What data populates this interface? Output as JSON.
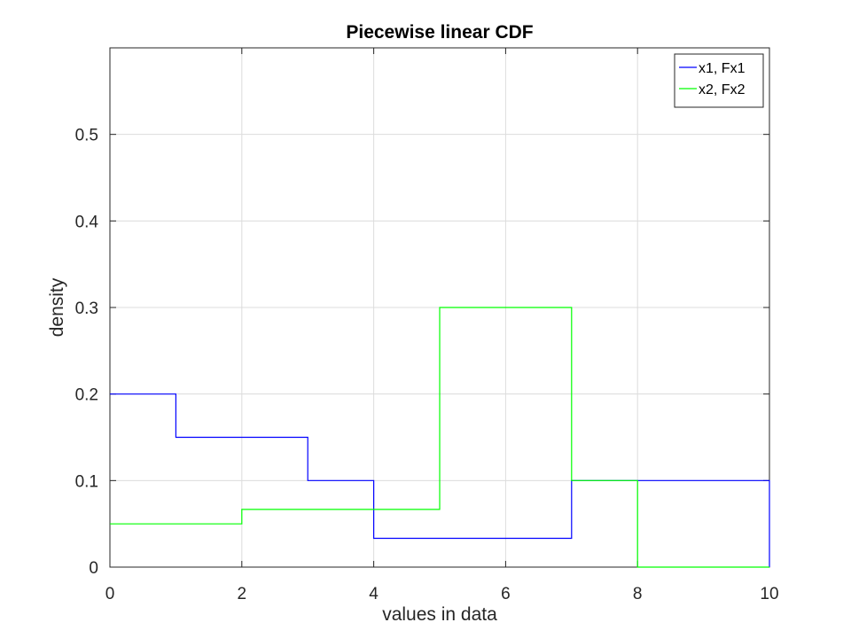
{
  "chart_data": {
    "type": "line",
    "title": "Piecewise linear CDF",
    "xlabel": "values in data",
    "ylabel": "density",
    "xlim": [
      0,
      10
    ],
    "ylim": [
      0,
      0.6
    ],
    "x_ticks": [
      0,
      2,
      4,
      6,
      8,
      10
    ],
    "x_tick_labels": [
      "0",
      "2",
      "4",
      "6",
      "8",
      "10"
    ],
    "y_ticks": [
      0,
      0.1,
      0.2,
      0.3,
      0.4,
      0.5
    ],
    "y_tick_labels": [
      "0",
      "0.1",
      "0.2",
      "0.3",
      "0.4",
      "0.5"
    ],
    "grid": true,
    "legend_position": "top-right",
    "series": [
      {
        "name": "x1, Fx1",
        "color": "#0000ff",
        "x": [
          0,
          1,
          1,
          3,
          3,
          4,
          4,
          7,
          7,
          10,
          10
        ],
        "y": [
          0.2,
          0.2,
          0.15,
          0.15,
          0.1,
          0.1,
          0.0333,
          0.0333,
          0.1,
          0.1,
          0
        ]
      },
      {
        "name": "x2, Fx2",
        "color": "#00ff00",
        "x": [
          0,
          2,
          2,
          5,
          5,
          7,
          7,
          8,
          8,
          10
        ],
        "y": [
          0.05,
          0.05,
          0.0667,
          0.0667,
          0.3,
          0.3,
          0.1,
          0.1,
          0,
          0
        ]
      }
    ]
  }
}
